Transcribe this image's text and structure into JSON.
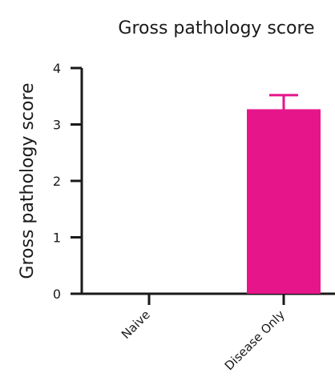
{
  "chart_data": {
    "type": "bar",
    "title": "Gross pathology score",
    "xlabel": "",
    "ylabel": "Gross pathology score",
    "ylim": [
      0,
      4
    ],
    "yticks": [
      0,
      1,
      2,
      3,
      4
    ],
    "categories": [
      "Naive",
      "Disease Only"
    ],
    "values": [
      0,
      3.27
    ],
    "error_upper": [
      0,
      0.25
    ],
    "grid": false,
    "colors": {
      "bar": "#e6158a",
      "axis": "#1a1a1a"
    }
  }
}
